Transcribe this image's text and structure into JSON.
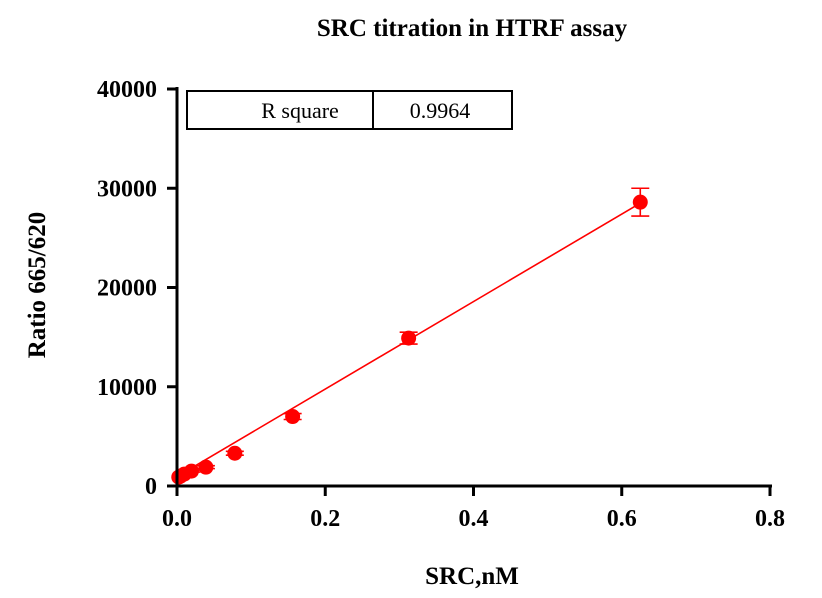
{
  "chart_data": {
    "type": "scatter",
    "title": "SRC titration in HTRF assay",
    "xlabel": "SRC,nM",
    "ylabel": "Ratio 665/620",
    "xlim": [
      0,
      0.8
    ],
    "ylim": [
      0,
      40000
    ],
    "x_ticks": [
      0,
      0.2,
      0.4,
      0.6,
      0.8
    ],
    "x_tick_labels": [
      "0.0",
      "0.2",
      "0.4",
      "0.6",
      "0.8"
    ],
    "y_ticks": [
      0,
      10000,
      20000,
      30000,
      40000
    ],
    "y_tick_labels": [
      "0",
      "10000",
      "20000",
      "30000",
      "40000"
    ],
    "grid": false,
    "series": [
      {
        "color": "#ff0000",
        "x": [
          0.0024,
          0.0049,
          0.0098,
          0.0195,
          0.039,
          0.078,
          0.156,
          0.3125,
          0.625
        ],
        "y": [
          900,
          1000,
          1200,
          1500,
          1900,
          3300,
          7000,
          14900,
          28600
        ],
        "y_err": [
          0,
          0,
          0,
          100,
          150,
          200,
          300,
          600,
          1400
        ]
      }
    ],
    "fit_line": {
      "color": "#ff0000",
      "x": [
        0,
        0.625
      ],
      "y": [
        950,
        28500
      ]
    },
    "stats_table": {
      "label": "R square",
      "value": "0.9964"
    }
  }
}
